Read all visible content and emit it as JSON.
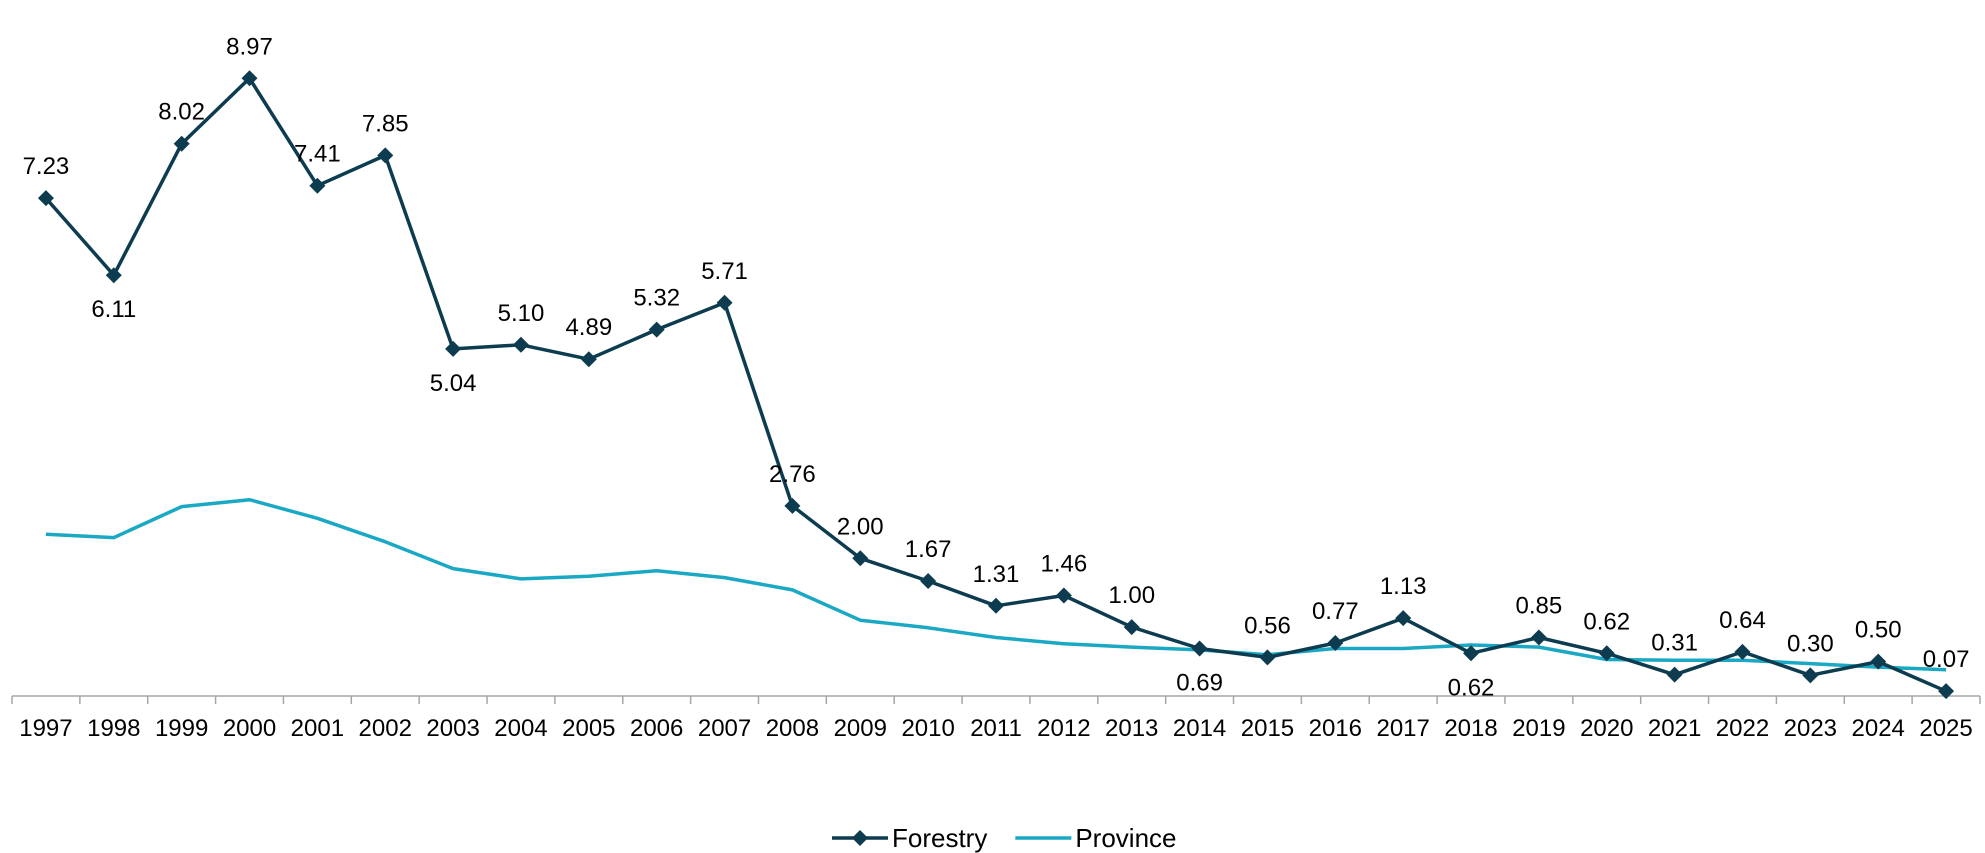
{
  "chart_data": {
    "type": "line",
    "categories": [
      "1997",
      "1998",
      "1999",
      "2000",
      "2001",
      "2002",
      "2003",
      "2004",
      "2005",
      "2006",
      "2007",
      "2008",
      "2009",
      "2010",
      "2011",
      "2012",
      "2013",
      "2014",
      "2015",
      "2016",
      "2017",
      "2018",
      "2019",
      "2020",
      "2021",
      "2022",
      "2023",
      "2024",
      "2025"
    ],
    "series": [
      {
        "name": "Forestry",
        "color": "#0d3b4f",
        "marker": "diamond",
        "values": [
          7.23,
          6.11,
          8.02,
          8.97,
          7.41,
          7.85,
          5.04,
          5.1,
          4.89,
          5.32,
          5.71,
          2.76,
          2.0,
          1.67,
          1.31,
          1.46,
          1.0,
          0.69,
          0.56,
          0.77,
          1.13,
          0.62,
          0.85,
          0.62,
          0.31,
          0.64,
          0.3,
          0.5,
          0.07
        ],
        "labels": [
          "7.23",
          "6.11",
          "8.02",
          "8.97",
          "7.41",
          "7.85",
          "5.04",
          "5.10",
          "4.89",
          "5.32",
          "5.71",
          "2.76",
          "2.00",
          "1.67",
          "1.31",
          "1.46",
          "1.00",
          "0.69",
          "0.56",
          "0.77",
          "1.13",
          "0.62",
          "0.85",
          "0.62",
          "0.31",
          "0.64",
          "0.30",
          "0.50",
          "0.07"
        ],
        "label_side": [
          "above",
          "below",
          "above",
          "above",
          "above",
          "above",
          "below",
          "above",
          "above",
          "above",
          "above",
          "above",
          "above",
          "above",
          "above",
          "above",
          "above",
          "below",
          "above",
          "above",
          "above",
          "below",
          "above",
          "above",
          "above",
          "above",
          "above",
          "above",
          "above"
        ]
      },
      {
        "name": "Province",
        "color": "#1aa8c4",
        "marker": "none",
        "values": [
          2.35,
          2.3,
          2.75,
          2.85,
          2.58,
          2.24,
          1.85,
          1.7,
          1.74,
          1.82,
          1.72,
          1.54,
          1.1,
          0.99,
          0.85,
          0.76,
          0.71,
          0.67,
          0.6,
          0.69,
          0.69,
          0.74,
          0.71,
          0.53,
          0.52,
          0.52,
          0.47,
          0.42,
          0.38
        ]
      }
    ],
    "ylim": [
      0,
      9.7
    ],
    "xlabel": "",
    "ylabel": "",
    "title": "",
    "grid": false,
    "legend": "bottom-center"
  }
}
